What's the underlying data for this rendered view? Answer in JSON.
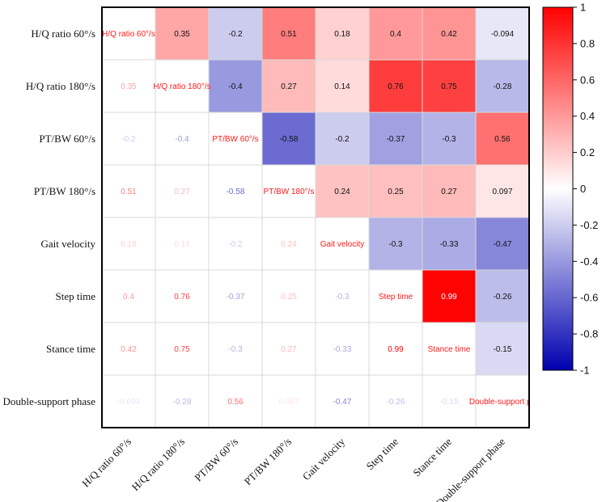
{
  "chart_data": {
    "type": "heatmap",
    "variables": [
      "H/Q ratio 60°/s",
      "H/Q ratio 180°/s",
      "PT/BW 60°/s",
      "PT/BW 180°/s",
      "Gait velocity",
      "Step time",
      "Stance time",
      "Double-support phase"
    ],
    "diagonal_labels": [
      "H/Q ratio 60°/s",
      "H/Q ratio 180°/s",
      "PT/BW 60°/s",
      "PT/BW 180°/s",
      "Gait velocity",
      "Step time",
      "Stance time",
      "Double-support ph"
    ],
    "matrix": [
      [
        1,
        0.35,
        -0.2,
        0.51,
        0.18,
        0.4,
        0.42,
        -0.094
      ],
      [
        0.35,
        1,
        -0.4,
        0.27,
        0.14,
        0.76,
        0.75,
        -0.28
      ],
      [
        -0.2,
        -0.4,
        1,
        -0.58,
        -0.2,
        -0.37,
        -0.3,
        0.56
      ],
      [
        0.51,
        0.27,
        -0.58,
        1,
        0.24,
        0.25,
        0.27,
        0.097
      ],
      [
        0.18,
        0.14,
        -0.2,
        0.24,
        1,
        -0.3,
        -0.33,
        -0.47
      ],
      [
        0.4,
        0.76,
        -0.37,
        0.25,
        -0.3,
        1,
        0.99,
        -0.26
      ],
      [
        0.42,
        0.75,
        -0.3,
        0.27,
        -0.33,
        0.99,
        1,
        -0.15
      ],
      [
        -0.094,
        -0.28,
        0.56,
        0.097,
        -0.47,
        -0.26,
        -0.15,
        1
      ]
    ],
    "cell_labels": [
      [
        "",
        "0.35",
        "-0.2",
        "0.51",
        "0.18",
        "0.4",
        "0.42",
        "-0.094"
      ],
      [
        "0.35",
        "",
        "-0.4",
        "0.27",
        "0.14",
        "0.76",
        "0.75",
        "-0.28"
      ],
      [
        "-0.2",
        "-0.4",
        "",
        "-0.58",
        "-0.2",
        "-0.37",
        "-0.3",
        "0.56"
      ],
      [
        "0.51",
        "0.27",
        "-0.58",
        "",
        "0.24",
        "0.25",
        "0.27",
        "0.097"
      ],
      [
        "0.18",
        "0.14",
        "-0.2",
        "0.24",
        "",
        "-0.3",
        "-0.33",
        "-0.47"
      ],
      [
        "0.4",
        "0.76",
        "-0.37",
        "0.25",
        "-0.3",
        "",
        "0.99",
        "-0.26"
      ],
      [
        "0.42",
        "0.75",
        "-0.3",
        "0.27",
        "-0.33",
        "0.99",
        "",
        "-0.15"
      ],
      [
        "-0.094",
        "-0.28",
        "0.56",
        "0.097",
        "-0.47",
        "-0.26",
        "-0.15",
        ""
      ]
    ],
    "upper_triangle": "colored cells with black value labels (white on strongest cell)",
    "lower_triangle": "white cells with value text colored by correlation",
    "colorbar": {
      "range": [
        -1,
        1
      ],
      "ticks": [
        1,
        0.8,
        0.6,
        0.4,
        0.2,
        0,
        -0.2,
        -0.4,
        -0.6,
        -0.8,
        -1
      ],
      "tick_labels": [
        "1",
        "0.8",
        "0.6",
        "0.4",
        "0.2",
        "0",
        "-0.2",
        "-0.4",
        "-0.6",
        "-0.8",
        "-1"
      ],
      "colors": {
        "neg": "#0000b0",
        "mid": "#ffffff",
        "pos": "#ff0000"
      }
    },
    "colors": {
      "diagonal_text": "#ff1a1a",
      "grid": "#d9d9d9",
      "frame": "#000000"
    }
  }
}
